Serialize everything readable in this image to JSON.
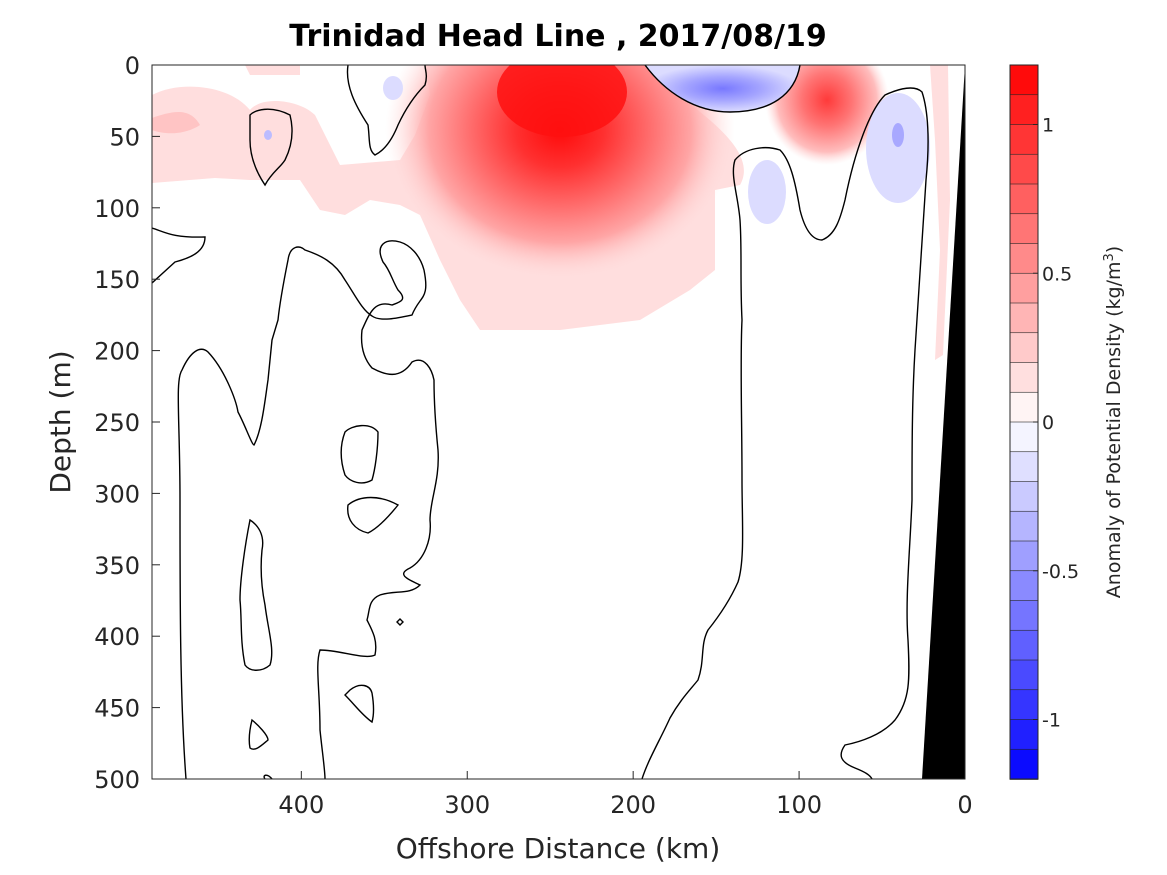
{
  "chart_data": {
    "type": "heatmap",
    "title": "Trinidad Head Line , 2017/08/19",
    "xlabel": "Offshore Distance (km)",
    "ylabel": "Depth (m)",
    "xlim": [
      490,
      0
    ],
    "ylim": [
      500,
      0
    ],
    "x_ticks": [
      "400",
      "300",
      "200",
      "100",
      "0"
    ],
    "y_ticks": [
      "0",
      "50",
      "100",
      "150",
      "200",
      "250",
      "300",
      "350",
      "400",
      "450",
      "500"
    ],
    "colorbar": {
      "label": "Anomaly of Potential Density (kg/m",
      "label_superscript": "3",
      "label_suffix": ")",
      "range": [
        -1.2,
        1.2
      ],
      "ticks": [
        "1",
        "0.5",
        "0",
        "-0.5",
        "-1"
      ],
      "tick_values": [
        1,
        0.5,
        0,
        -0.5,
        -1
      ],
      "levels": 24,
      "positive_color": "#ff0000",
      "negative_color": "#0000ff",
      "neutral_color": "#ffffff"
    },
    "features": [
      {
        "label": "positive anomaly core",
        "x_km": 245,
        "depth_m": 20,
        "value": 1.15
      },
      {
        "label": "positive anomaly",
        "x_km": 82,
        "depth_m": 20,
        "value": 0.9
      },
      {
        "label": "negative anomaly",
        "x_km": 130,
        "depth_m": 5,
        "value": -0.4
      },
      {
        "label": "negative anomaly",
        "x_km": 40,
        "depth_m": 50,
        "value": -0.2
      },
      {
        "label": "negative anomaly",
        "x_km": 120,
        "depth_m": 90,
        "value": -0.15
      }
    ],
    "land_mask": {
      "color": "#000000",
      "points": [
        [
          0,
          0
        ],
        [
          28,
          500
        ],
        [
          0,
          500
        ]
      ]
    }
  }
}
